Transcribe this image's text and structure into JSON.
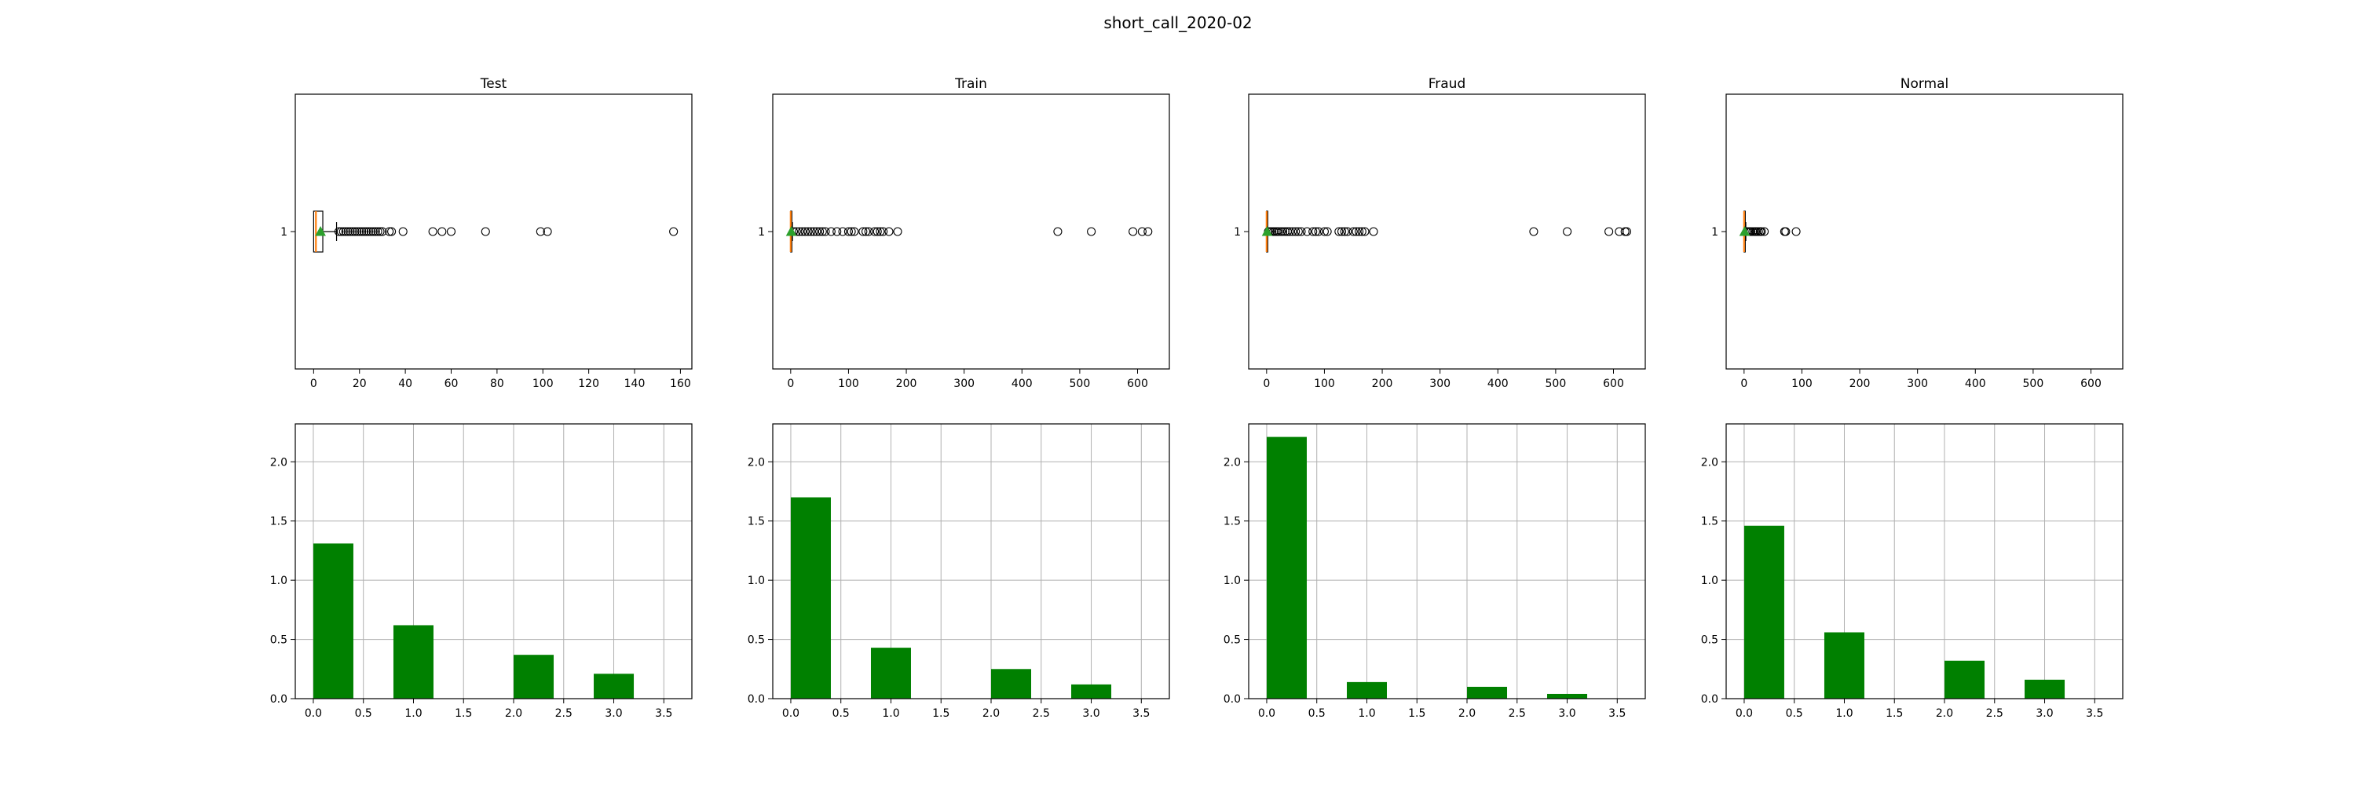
{
  "figure": {
    "suptitle": "short_call_2020-02"
  },
  "chart_data": [
    {
      "type": "boxplot",
      "title": "Test",
      "orientation": "horizontal",
      "xlim": [
        -8,
        165
      ],
      "xticks": [
        0,
        20,
        40,
        60,
        80,
        100,
        120,
        140,
        160
      ],
      "ytick_labels": [
        "1"
      ],
      "box": {
        "q1": 0,
        "median": 1,
        "q3": 4,
        "whisker_low": 0,
        "whisker_high": 10,
        "mean": 3
      },
      "outliers": [
        11,
        12,
        13,
        14,
        15,
        16,
        17,
        18,
        19,
        20,
        21,
        22,
        23,
        24,
        25,
        26,
        27,
        28,
        29,
        30,
        33,
        34,
        39,
        52,
        56,
        60,
        75,
        99,
        102,
        157
      ],
      "colors": {
        "median": "#ff7f0e",
        "mean": "#2ca02c"
      }
    },
    {
      "type": "boxplot",
      "title": "Train",
      "orientation": "horizontal",
      "xlim": [
        -31,
        655
      ],
      "xticks": [
        0,
        100,
        200,
        300,
        400,
        500,
        600
      ],
      "ytick_labels": [
        "1"
      ],
      "box": {
        "q1": 0,
        "median": 0,
        "q3": 1,
        "whisker_low": 0,
        "whisker_high": 3,
        "mean": 1
      },
      "outliers": [
        5,
        10,
        15,
        20,
        25,
        30,
        35,
        40,
        45,
        50,
        55,
        60,
        70,
        80,
        90,
        100,
        105,
        110,
        125,
        130,
        135,
        145,
        150,
        155,
        160,
        170,
        185,
        462,
        520,
        592,
        608,
        618
      ],
      "colors": {
        "median": "#ff7f0e",
        "mean": "#2ca02c"
      }
    },
    {
      "type": "boxplot",
      "title": "Fraud",
      "orientation": "horizontal",
      "xlim": [
        -31,
        655
      ],
      "xticks": [
        0,
        100,
        200,
        300,
        400,
        500,
        600
      ],
      "ytick_labels": [
        "1"
      ],
      "box": {
        "q1": 0,
        "median": 0,
        "q3": 0,
        "whisker_low": 0,
        "whisker_high": 0,
        "mean": 1
      },
      "outliers": [
        3,
        6,
        9,
        12,
        15,
        18,
        21,
        25,
        28,
        32,
        36,
        40,
        45,
        50,
        55,
        60,
        70,
        80,
        85,
        90,
        100,
        105,
        125,
        130,
        135,
        140,
        150,
        155,
        160,
        165,
        170,
        185,
        462,
        520,
        592,
        610,
        620,
        623
      ],
      "colors": {
        "median": "#ff7f0e",
        "mean": "#2ca02c"
      }
    },
    {
      "type": "boxplot",
      "title": "Normal",
      "orientation": "horizontal",
      "xlim": [
        -31,
        655
      ],
      "xticks": [
        0,
        100,
        200,
        300,
        400,
        500,
        600
      ],
      "ytick_labels": [
        "1"
      ],
      "box": {
        "q1": 0,
        "median": 0,
        "q3": 1,
        "whisker_low": 0,
        "whisker_high": 3,
        "mean": 1
      },
      "outliers": [
        5,
        8,
        10,
        12,
        15,
        18,
        20,
        22,
        25,
        28,
        30,
        35,
        70,
        72,
        90
      ],
      "colors": {
        "median": "#ff7f0e",
        "mean": "#2ca02c"
      }
    },
    {
      "type": "bar",
      "title": "",
      "grid": true,
      "color": "#008000",
      "xlim": [
        -0.18,
        3.78
      ],
      "ylim": [
        0,
        2.32
      ],
      "xticks": [
        0.0,
        0.5,
        1.0,
        1.5,
        2.0,
        2.5,
        3.0,
        3.5
      ],
      "xtick_labels": [
        "0.0",
        "0.5",
        "1.0",
        "1.5",
        "2.0",
        "2.5",
        "3.0",
        "3.5"
      ],
      "yticks": [
        0.0,
        0.5,
        1.0,
        1.5,
        2.0
      ],
      "ytick_labels": [
        "0.0",
        "0.5",
        "1.0",
        "1.5",
        "2.0"
      ],
      "bins": [
        [
          0,
          0.4
        ],
        [
          0.8,
          1.2
        ],
        [
          2.0,
          2.4
        ],
        [
          2.8,
          3.2
        ]
      ],
      "values": [
        1.31,
        0.62,
        0.37,
        0.21
      ]
    },
    {
      "type": "bar",
      "title": "",
      "grid": true,
      "color": "#008000",
      "xlim": [
        -0.18,
        3.78
      ],
      "ylim": [
        0,
        2.32
      ],
      "xticks": [
        0.0,
        0.5,
        1.0,
        1.5,
        2.0,
        2.5,
        3.0,
        3.5
      ],
      "xtick_labels": [
        "0.0",
        "0.5",
        "1.0",
        "1.5",
        "2.0",
        "2.5",
        "3.0",
        "3.5"
      ],
      "yticks": [
        0.0,
        0.5,
        1.0,
        1.5,
        2.0
      ],
      "ytick_labels": [
        "0.0",
        "0.5",
        "1.0",
        "1.5",
        "2.0"
      ],
      "bins": [
        [
          0,
          0.4
        ],
        [
          0.8,
          1.2
        ],
        [
          2.0,
          2.4
        ],
        [
          2.8,
          3.2
        ]
      ],
      "values": [
        1.7,
        0.43,
        0.25,
        0.12
      ]
    },
    {
      "type": "bar",
      "title": "",
      "grid": true,
      "color": "#008000",
      "xlim": [
        -0.18,
        3.78
      ],
      "ylim": [
        0,
        2.32
      ],
      "xticks": [
        0.0,
        0.5,
        1.0,
        1.5,
        2.0,
        2.5,
        3.0,
        3.5
      ],
      "xtick_labels": [
        "0.0",
        "0.5",
        "1.0",
        "1.5",
        "2.0",
        "2.5",
        "3.0",
        "3.5"
      ],
      "yticks": [
        0.0,
        0.5,
        1.0,
        1.5,
        2.0
      ],
      "ytick_labels": [
        "0.0",
        "0.5",
        "1.0",
        "1.5",
        "2.0"
      ],
      "bins": [
        [
          0,
          0.4
        ],
        [
          0.8,
          1.2
        ],
        [
          2.0,
          2.4
        ],
        [
          2.8,
          3.2
        ]
      ],
      "values": [
        2.21,
        0.14,
        0.1,
        0.04
      ]
    },
    {
      "type": "bar",
      "title": "",
      "grid": true,
      "color": "#008000",
      "xlim": [
        -0.18,
        3.78
      ],
      "ylim": [
        0,
        2.32
      ],
      "xticks": [
        0.0,
        0.5,
        1.0,
        1.5,
        2.0,
        2.5,
        3.0,
        3.5
      ],
      "xtick_labels": [
        "0.0",
        "0.5",
        "1.0",
        "1.5",
        "2.0",
        "2.5",
        "3.0",
        "3.5"
      ],
      "yticks": [
        0.0,
        0.5,
        1.0,
        1.5,
        2.0
      ],
      "ytick_labels": [
        "0.0",
        "0.5",
        "1.0",
        "1.5",
        "2.0"
      ],
      "bins": [
        [
          0,
          0.4
        ],
        [
          0.8,
          1.2
        ],
        [
          2.0,
          2.4
        ],
        [
          2.8,
          3.2
        ]
      ],
      "values": [
        1.46,
        0.56,
        0.32,
        0.16
      ]
    }
  ]
}
